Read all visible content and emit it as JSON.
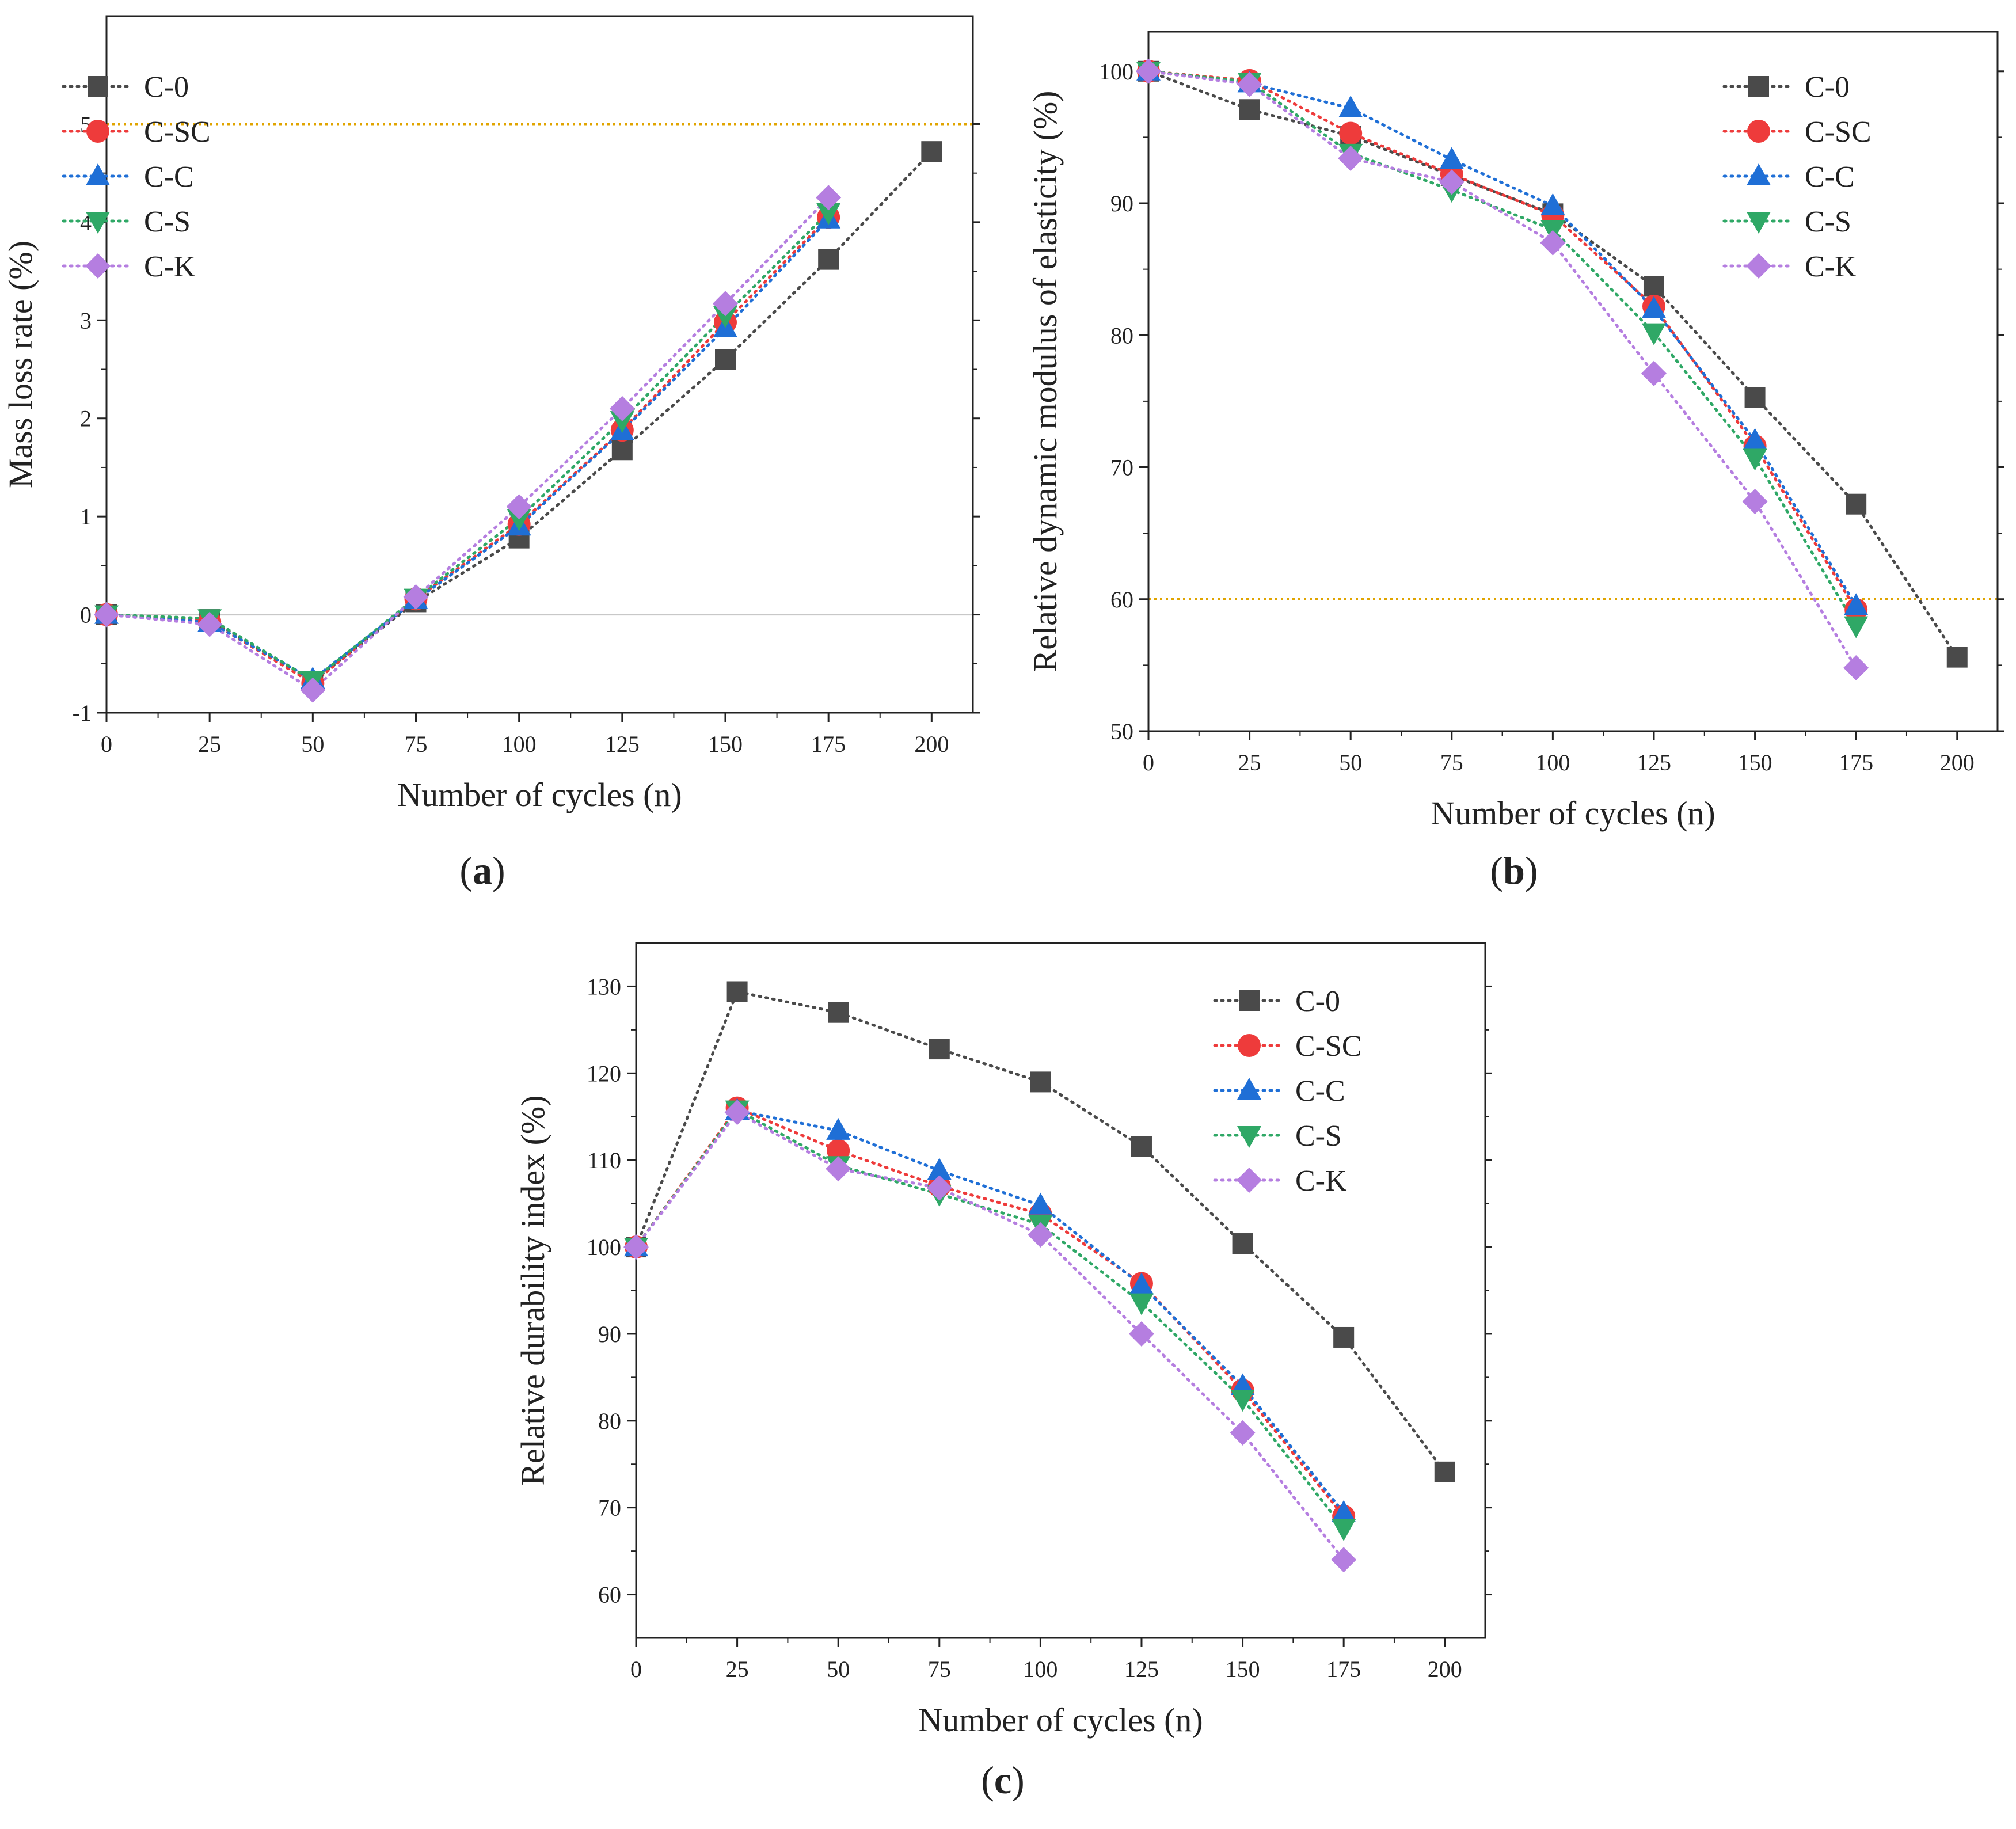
{
  "figure": {
    "panel_labels": [
      {
        "open": "(",
        "letter": "a",
        "close": ")"
      },
      {
        "open": "(",
        "letter": "b",
        "close": ")"
      },
      {
        "open": "(",
        "letter": "c",
        "close": ")"
      }
    ]
  },
  "series_styles": [
    {
      "name": "C-0",
      "color": "#4a4a4a",
      "marker": "square"
    },
    {
      "name": "C-SC",
      "color": "#ee3b3b",
      "marker": "circle"
    },
    {
      "name": "C-C",
      "color": "#1f6fd6",
      "marker": "triangle-up"
    },
    {
      "name": "C-S",
      "color": "#2fa866",
      "marker": "triangle-down"
    },
    {
      "name": "C-K",
      "color": "#b57ee0",
      "marker": "diamond"
    }
  ],
  "chart_data": [
    {
      "type": "line",
      "title": "",
      "xlabel": "Number of cycles (n)",
      "ylabel": "Mass loss rate (%)",
      "xlim": [
        0,
        210
      ],
      "ylim": [
        -1,
        6.1
      ],
      "xticks": [
        0,
        25,
        50,
        75,
        100,
        125,
        150,
        175,
        200
      ],
      "yticks": [
        -1,
        0,
        1,
        2,
        3,
        4,
        5
      ],
      "reference_lines": [
        {
          "y": 5,
          "color": "#e0a400",
          "style": "dotted"
        },
        {
          "y": 0,
          "color": "#c8c8c8",
          "style": "solid"
        }
      ],
      "legend_position": "top-left",
      "series": [
        {
          "name": "C-0",
          "x": [
            0,
            25,
            50,
            75,
            100,
            125,
            150,
            175,
            200
          ],
          "values": [
            0,
            -0.05,
            -0.68,
            0.13,
            0.78,
            1.68,
            2.6,
            3.62,
            4.72
          ]
        },
        {
          "name": "C-SC",
          "x": [
            0,
            25,
            50,
            75,
            100,
            125,
            150,
            175
          ],
          "values": [
            0,
            -0.07,
            -0.7,
            0.16,
            0.92,
            1.88,
            2.98,
            4.05
          ]
        },
        {
          "name": "C-C",
          "x": [
            0,
            25,
            50,
            75,
            100,
            125,
            150,
            175
          ],
          "values": [
            0,
            -0.08,
            -0.66,
            0.15,
            0.9,
            1.87,
            2.92,
            4.03
          ]
        },
        {
          "name": "C-S",
          "x": [
            0,
            25,
            50,
            75,
            100,
            125,
            150,
            175
          ],
          "values": [
            0,
            -0.04,
            -0.67,
            0.17,
            0.98,
            1.98,
            3.05,
            4.1
          ]
        },
        {
          "name": "C-K",
          "x": [
            0,
            25,
            50,
            75,
            100,
            125,
            150,
            175
          ],
          "values": [
            0,
            -0.1,
            -0.77,
            0.18,
            1.1,
            2.1,
            3.17,
            4.25
          ]
        }
      ]
    },
    {
      "type": "line",
      "title": "",
      "xlabel": "Number of cycles (n)",
      "ylabel": "Relative dynamic modulus of elasticity (%)",
      "xlim": [
        0,
        210
      ],
      "ylim": [
        50,
        103
      ],
      "xticks": [
        0,
        25,
        50,
        75,
        100,
        125,
        150,
        175,
        200
      ],
      "yticks": [
        50,
        60,
        70,
        80,
        90,
        100
      ],
      "reference_lines": [
        {
          "y": 60,
          "color": "#e0a400",
          "style": "dotted"
        }
      ],
      "legend_position": "top-right",
      "series": [
        {
          "name": "C-0",
          "x": [
            0,
            25,
            50,
            75,
            100,
            125,
            150,
            175,
            200
          ],
          "values": [
            100,
            97.1,
            95.1,
            92.1,
            89.2,
            83.7,
            75.3,
            67.2,
            55.6
          ]
        },
        {
          "name": "C-SC",
          "x": [
            0,
            25,
            50,
            75,
            100,
            125,
            150,
            175
          ],
          "values": [
            100,
            99.3,
            95.3,
            92.2,
            89.1,
            82.2,
            71.6,
            59.2
          ]
        },
        {
          "name": "C-C",
          "x": [
            0,
            25,
            50,
            75,
            100,
            125,
            150,
            175
          ],
          "values": [
            100,
            99.1,
            97.2,
            93.3,
            89.8,
            82.0,
            72.0,
            59.5
          ]
        },
        {
          "name": "C-S",
          "x": [
            0,
            25,
            50,
            75,
            100,
            125,
            150,
            175
          ],
          "values": [
            100,
            99.2,
            93.8,
            91.0,
            88.0,
            80.2,
            70.7,
            58.0
          ]
        },
        {
          "name": "C-K",
          "x": [
            0,
            25,
            50,
            75,
            100,
            125,
            150,
            175
          ],
          "values": [
            100,
            99.0,
            93.4,
            91.6,
            87.0,
            77.1,
            67.4,
            54.8
          ]
        }
      ]
    },
    {
      "type": "line",
      "title": "",
      "xlabel": "Number of cycles (n)",
      "ylabel": "Relative durability index (%)",
      "xlim": [
        0,
        210
      ],
      "ylim": [
        55,
        135
      ],
      "xticks": [
        0,
        25,
        50,
        75,
        100,
        125,
        150,
        175,
        200
      ],
      "yticks": [
        60,
        70,
        80,
        90,
        100,
        110,
        120,
        130
      ],
      "reference_lines": [],
      "legend_position": "top-right",
      "series": [
        {
          "name": "C-0",
          "x": [
            0,
            25,
            50,
            75,
            100,
            125,
            150,
            175,
            200
          ],
          "values": [
            100,
            129.4,
            127.0,
            122.8,
            119.0,
            111.6,
            100.4,
            89.6,
            74.1
          ]
        },
        {
          "name": "C-SC",
          "x": [
            0,
            25,
            50,
            75,
            100,
            125,
            150,
            175
          ],
          "values": [
            100,
            116.0,
            111.1,
            107.0,
            103.8,
            95.8,
            83.5,
            69.0
          ]
        },
        {
          "name": "C-C",
          "x": [
            0,
            25,
            50,
            75,
            100,
            125,
            150,
            175
          ],
          "values": [
            100,
            115.7,
            113.4,
            108.8,
            104.8,
            95.6,
            84.0,
            69.4
          ]
        },
        {
          "name": "C-S",
          "x": [
            0,
            25,
            50,
            75,
            100,
            125,
            150,
            175
          ],
          "values": [
            100,
            115.8,
            109.4,
            106.1,
            102.6,
            93.6,
            82.5,
            67.6
          ]
        },
        {
          "name": "C-K",
          "x": [
            0,
            25,
            50,
            75,
            100,
            125,
            150,
            175
          ],
          "values": [
            100,
            115.5,
            109.0,
            106.8,
            101.4,
            90.0,
            78.6,
            64.0
          ]
        }
      ]
    }
  ]
}
